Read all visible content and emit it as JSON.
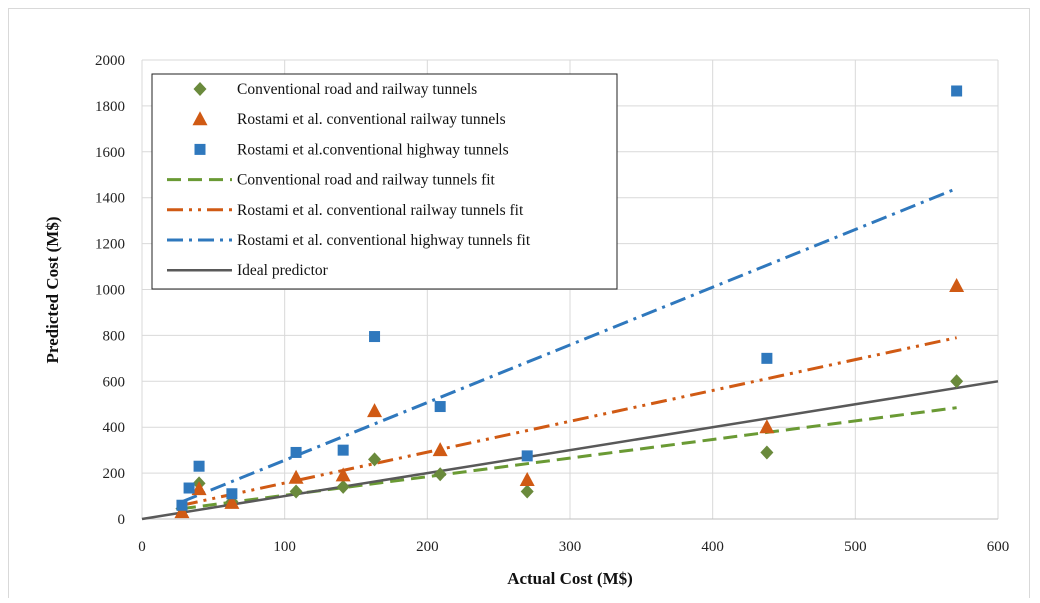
{
  "chart_data": {
    "type": "scatter",
    "xlabel": "Actual Cost (M$)",
    "ylabel": "Predicted Cost (M$)",
    "xlim": [
      0,
      600
    ],
    "ylim": [
      0,
      2000
    ],
    "xticks": [
      "0",
      "100",
      "200",
      "300",
      "400",
      "500",
      "600"
    ],
    "yticks": [
      "0",
      "200",
      "400",
      "600",
      "800",
      "1000",
      "1200",
      "1400",
      "1600",
      "1800",
      "2000"
    ],
    "grid": true,
    "legend_position": "top-left",
    "series": [
      {
        "name": "Conventional road and railway tunnels",
        "kind": "points",
        "marker": "diamond",
        "color": "#6a8a3c",
        "points": [
          [
            28,
            45
          ],
          [
            40,
            155
          ],
          [
            63,
            75
          ],
          [
            108,
            120
          ],
          [
            141,
            140
          ],
          [
            163,
            260
          ],
          [
            209,
            195
          ],
          [
            270,
            120
          ],
          [
            438,
            290
          ],
          [
            571,
            600
          ]
        ]
      },
      {
        "name": "Rostami et al. conventional railway tunnels",
        "kind": "points",
        "marker": "triangle",
        "color": "#d05a14",
        "points": [
          [
            28,
            30
          ],
          [
            40,
            130
          ],
          [
            63,
            70
          ],
          [
            108,
            180
          ],
          [
            141,
            190
          ],
          [
            163,
            470
          ],
          [
            209,
            300
          ],
          [
            270,
            170
          ],
          [
            438,
            400
          ],
          [
            571,
            1015
          ]
        ]
      },
      {
        "name": "Rostami et al.conventional highway tunnels",
        "kind": "points",
        "marker": "square",
        "color": "#2f78bd",
        "points": [
          [
            28,
            60
          ],
          [
            33,
            135
          ],
          [
            40,
            230
          ],
          [
            63,
            110
          ],
          [
            108,
            290
          ],
          [
            141,
            300
          ],
          [
            163,
            795
          ],
          [
            209,
            490
          ],
          [
            270,
            275
          ],
          [
            438,
            700
          ],
          [
            571,
            1865
          ]
        ]
      },
      {
        "name": "Conventional road and railway tunnels fit",
        "kind": "line",
        "style": "dashed",
        "color": "#6a9a34",
        "points": [
          [
            28,
            45
          ],
          [
            571,
            485
          ]
        ]
      },
      {
        "name": "Rostami et al. conventional railway tunnels fit",
        "kind": "line",
        "style": "dash-dot-dot",
        "color": "#d05a14",
        "points": [
          [
            28,
            60
          ],
          [
            571,
            790
          ]
        ]
      },
      {
        "name": "Rostami et al. conventional highway tunnels fit",
        "kind": "line",
        "style": "dash-dot",
        "color": "#2f78bd",
        "points": [
          [
            28,
            75
          ],
          [
            571,
            1440
          ]
        ]
      },
      {
        "name": "Ideal predictor",
        "kind": "line",
        "style": "solid",
        "color": "#595959",
        "points": [
          [
            0,
            0
          ],
          [
            600,
            600
          ]
        ]
      }
    ]
  }
}
